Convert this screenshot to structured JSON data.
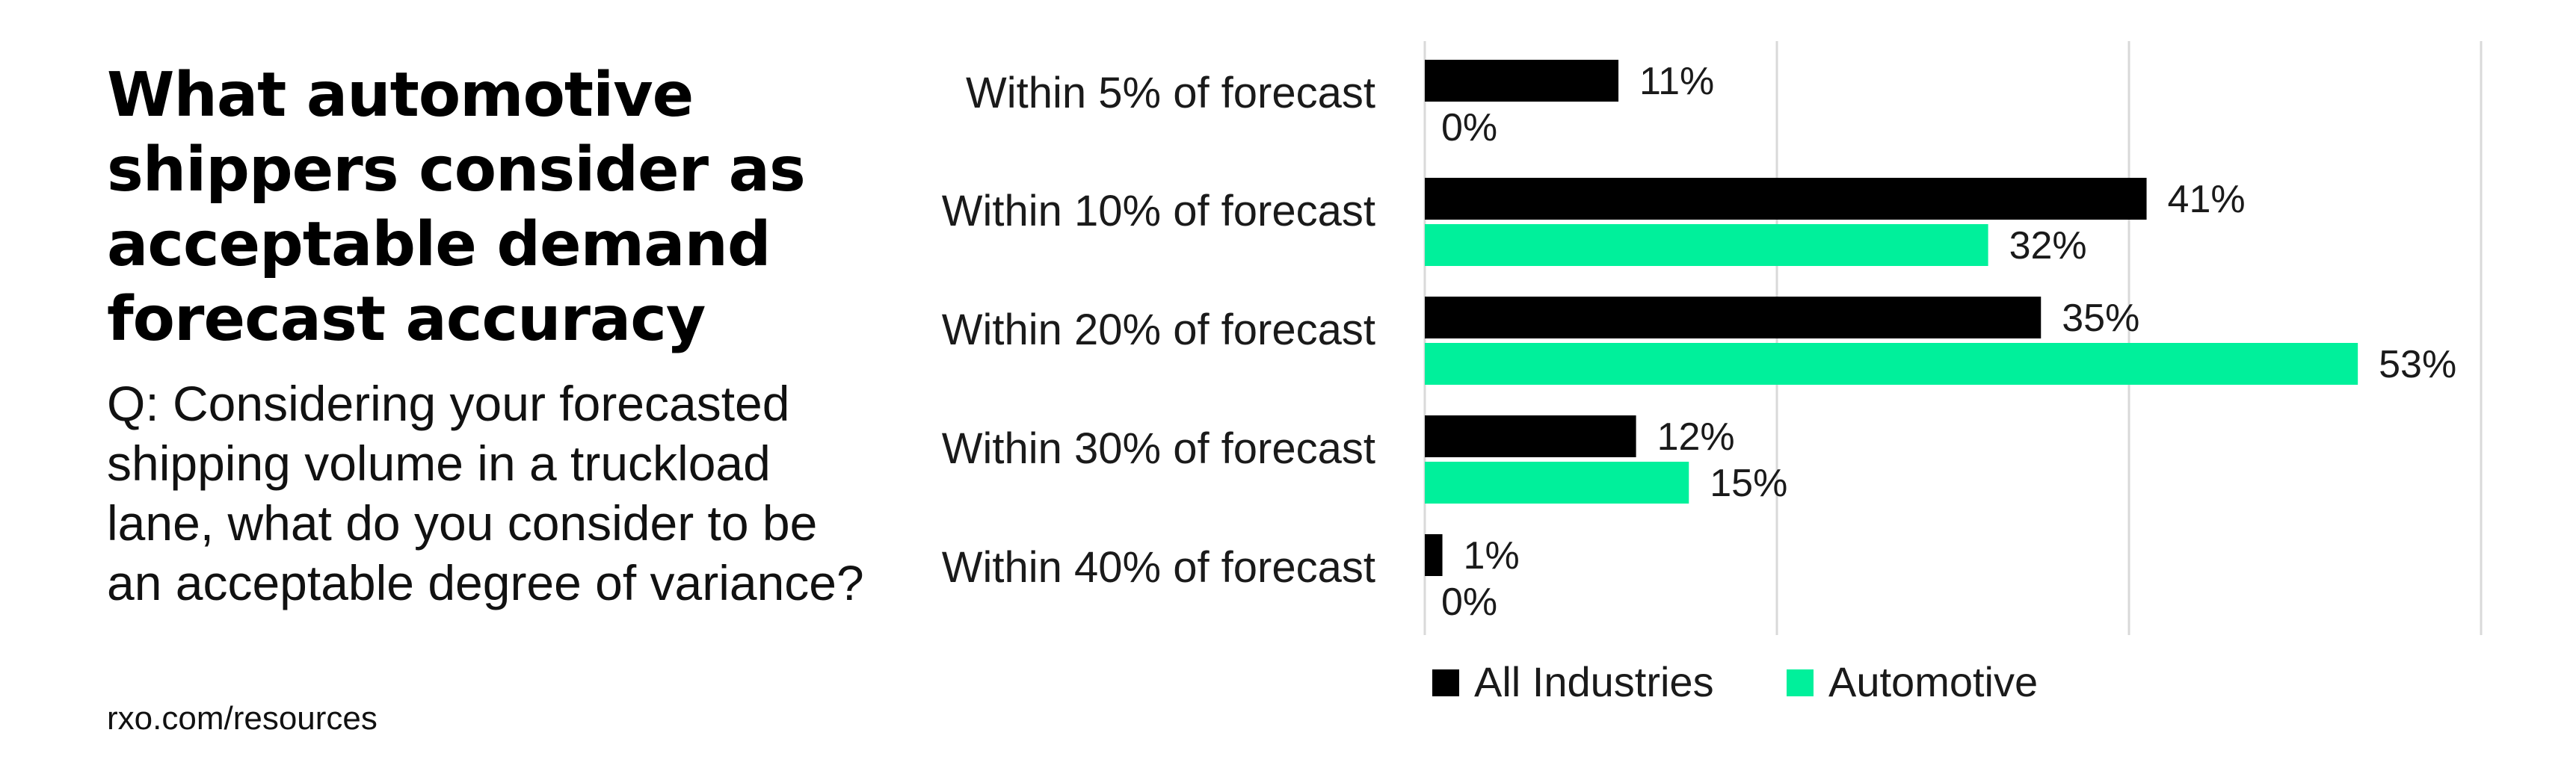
{
  "title": "What automotive shippers consider as acceptable demand forecast accuracy",
  "question": "Q: Considering your forecasted shipping volume in a truckload lane, what do you consider to be an acceptable degree of variance?",
  "source": "rxo.com/resources",
  "colors": {
    "all_industries": "#000000",
    "automotive": "#00f09b",
    "grid": "#d9d9d9"
  },
  "chart_data": {
    "type": "bar",
    "orientation": "horizontal",
    "categories": [
      "Within 5% of forecast",
      "Within 10% of forecast",
      "Within 20% of forecast",
      "Within 30% of forecast",
      "Within 40% of forecast"
    ],
    "series": [
      {
        "name": "All Industries",
        "values": [
          11,
          41,
          35,
          12,
          1
        ],
        "labels": [
          "11%",
          "41%",
          "35%",
          "12%",
          "1%"
        ]
      },
      {
        "name": "Automotive",
        "values": [
          0,
          32,
          53,
          15,
          0
        ],
        "labels": [
          "0%",
          "32%",
          "53%",
          "15%",
          "0%"
        ]
      }
    ],
    "xlim": [
      0,
      60
    ],
    "grid_step": 20,
    "grid": true,
    "legend": "bottom"
  }
}
